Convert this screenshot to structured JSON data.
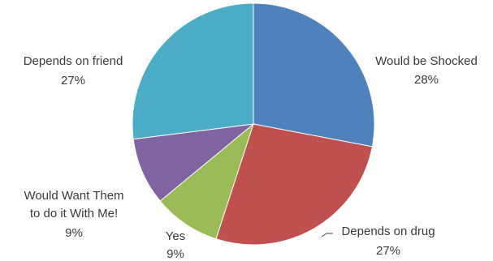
{
  "chart_data": {
    "type": "pie",
    "title": "",
    "slices": [
      {
        "label": "Would be Shocked",
        "percent_label": "28%",
        "value": 28,
        "color": "#4F81BD"
      },
      {
        "label": "Depends on drug",
        "percent_label": "27%",
        "value": 27,
        "color": "#C0504D"
      },
      {
        "label": "Yes",
        "percent_label": "9%",
        "value": 9,
        "color": "#9BBB59"
      },
      {
        "label": "Would Want Them to do it With Me!",
        "percent_label": "9%",
        "value": 9,
        "color": "#8064A2"
      },
      {
        "label": "Depends on friend",
        "percent_label": "27%",
        "value": 27,
        "color": "#4BACC6"
      }
    ]
  }
}
